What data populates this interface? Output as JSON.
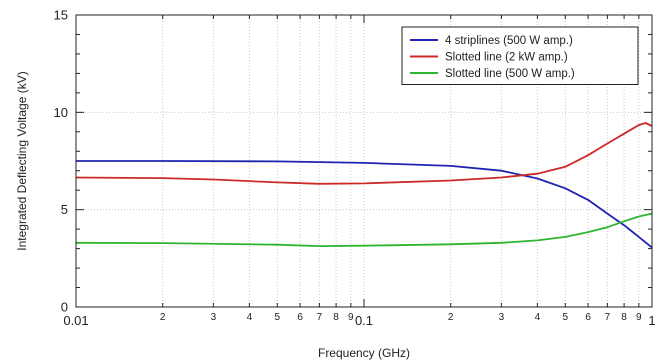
{
  "chart_data": {
    "type": "line",
    "title": "",
    "xlabel": "Frequency (GHz)",
    "ylabel": "Integrated Deflecting Voltage (kV)",
    "x_scale": "log",
    "xlim": [
      0.01,
      1
    ],
    "ylim": [
      0,
      15
    ],
    "grid": true,
    "legend_position": "top-right",
    "x_major_ticks": [
      {
        "value": 0.01,
        "label": "0.01"
      },
      {
        "value": 0.1,
        "label": "0.1"
      },
      {
        "value": 1,
        "label": "1"
      }
    ],
    "x_minor_ticks": [
      {
        "value": 0.02,
        "label": "2"
      },
      {
        "value": 0.03,
        "label": "3"
      },
      {
        "value": 0.04,
        "label": "4"
      },
      {
        "value": 0.05,
        "label": "5"
      },
      {
        "value": 0.06,
        "label": "6"
      },
      {
        "value": 0.07,
        "label": "7"
      },
      {
        "value": 0.08,
        "label": "8"
      },
      {
        "value": 0.09,
        "label": "9"
      },
      {
        "value": 0.2,
        "label": "2"
      },
      {
        "value": 0.3,
        "label": "3"
      },
      {
        "value": 0.4,
        "label": "4"
      },
      {
        "value": 0.5,
        "label": "5"
      },
      {
        "value": 0.6,
        "label": "6"
      },
      {
        "value": 0.7,
        "label": "7"
      },
      {
        "value": 0.8,
        "label": "8"
      },
      {
        "value": 0.9,
        "label": "9"
      }
    ],
    "y_ticks": [
      {
        "value": 0,
        "label": "0"
      },
      {
        "value": 5,
        "label": "5"
      },
      {
        "value": 10,
        "label": "10"
      },
      {
        "value": 15,
        "label": "15"
      }
    ],
    "series": [
      {
        "name": "4 striplines (500 W amp.)",
        "color": "#1f24b0",
        "x": [
          0.01,
          0.02,
          0.05,
          0.1,
          0.2,
          0.3,
          0.4,
          0.5,
          0.6,
          0.7,
          0.8,
          0.9,
          1.0
        ],
        "y": [
          7.5,
          7.5,
          7.48,
          7.4,
          7.25,
          7.0,
          6.6,
          6.1,
          5.5,
          4.8,
          4.2,
          3.6,
          3.05
        ]
      },
      {
        "name": "Slotted line (2 kW amp.)",
        "color": "#cc2a2a",
        "x": [
          0.01,
          0.02,
          0.03,
          0.05,
          0.07,
          0.1,
          0.2,
          0.3,
          0.4,
          0.5,
          0.6,
          0.7,
          0.8,
          0.9,
          0.95,
          1.0
        ],
        "y": [
          6.65,
          6.62,
          6.55,
          6.4,
          6.33,
          6.35,
          6.5,
          6.65,
          6.85,
          7.2,
          7.8,
          8.4,
          8.9,
          9.35,
          9.45,
          9.3
        ]
      },
      {
        "name": "Slotted line (500 W amp.)",
        "color": "#2fb52f",
        "x": [
          0.01,
          0.02,
          0.05,
          0.07,
          0.1,
          0.2,
          0.3,
          0.4,
          0.5,
          0.6,
          0.7,
          0.8,
          0.9,
          1.0
        ],
        "y": [
          3.3,
          3.28,
          3.2,
          3.13,
          3.15,
          3.22,
          3.3,
          3.42,
          3.6,
          3.85,
          4.1,
          4.4,
          4.65,
          4.8
        ]
      }
    ]
  }
}
